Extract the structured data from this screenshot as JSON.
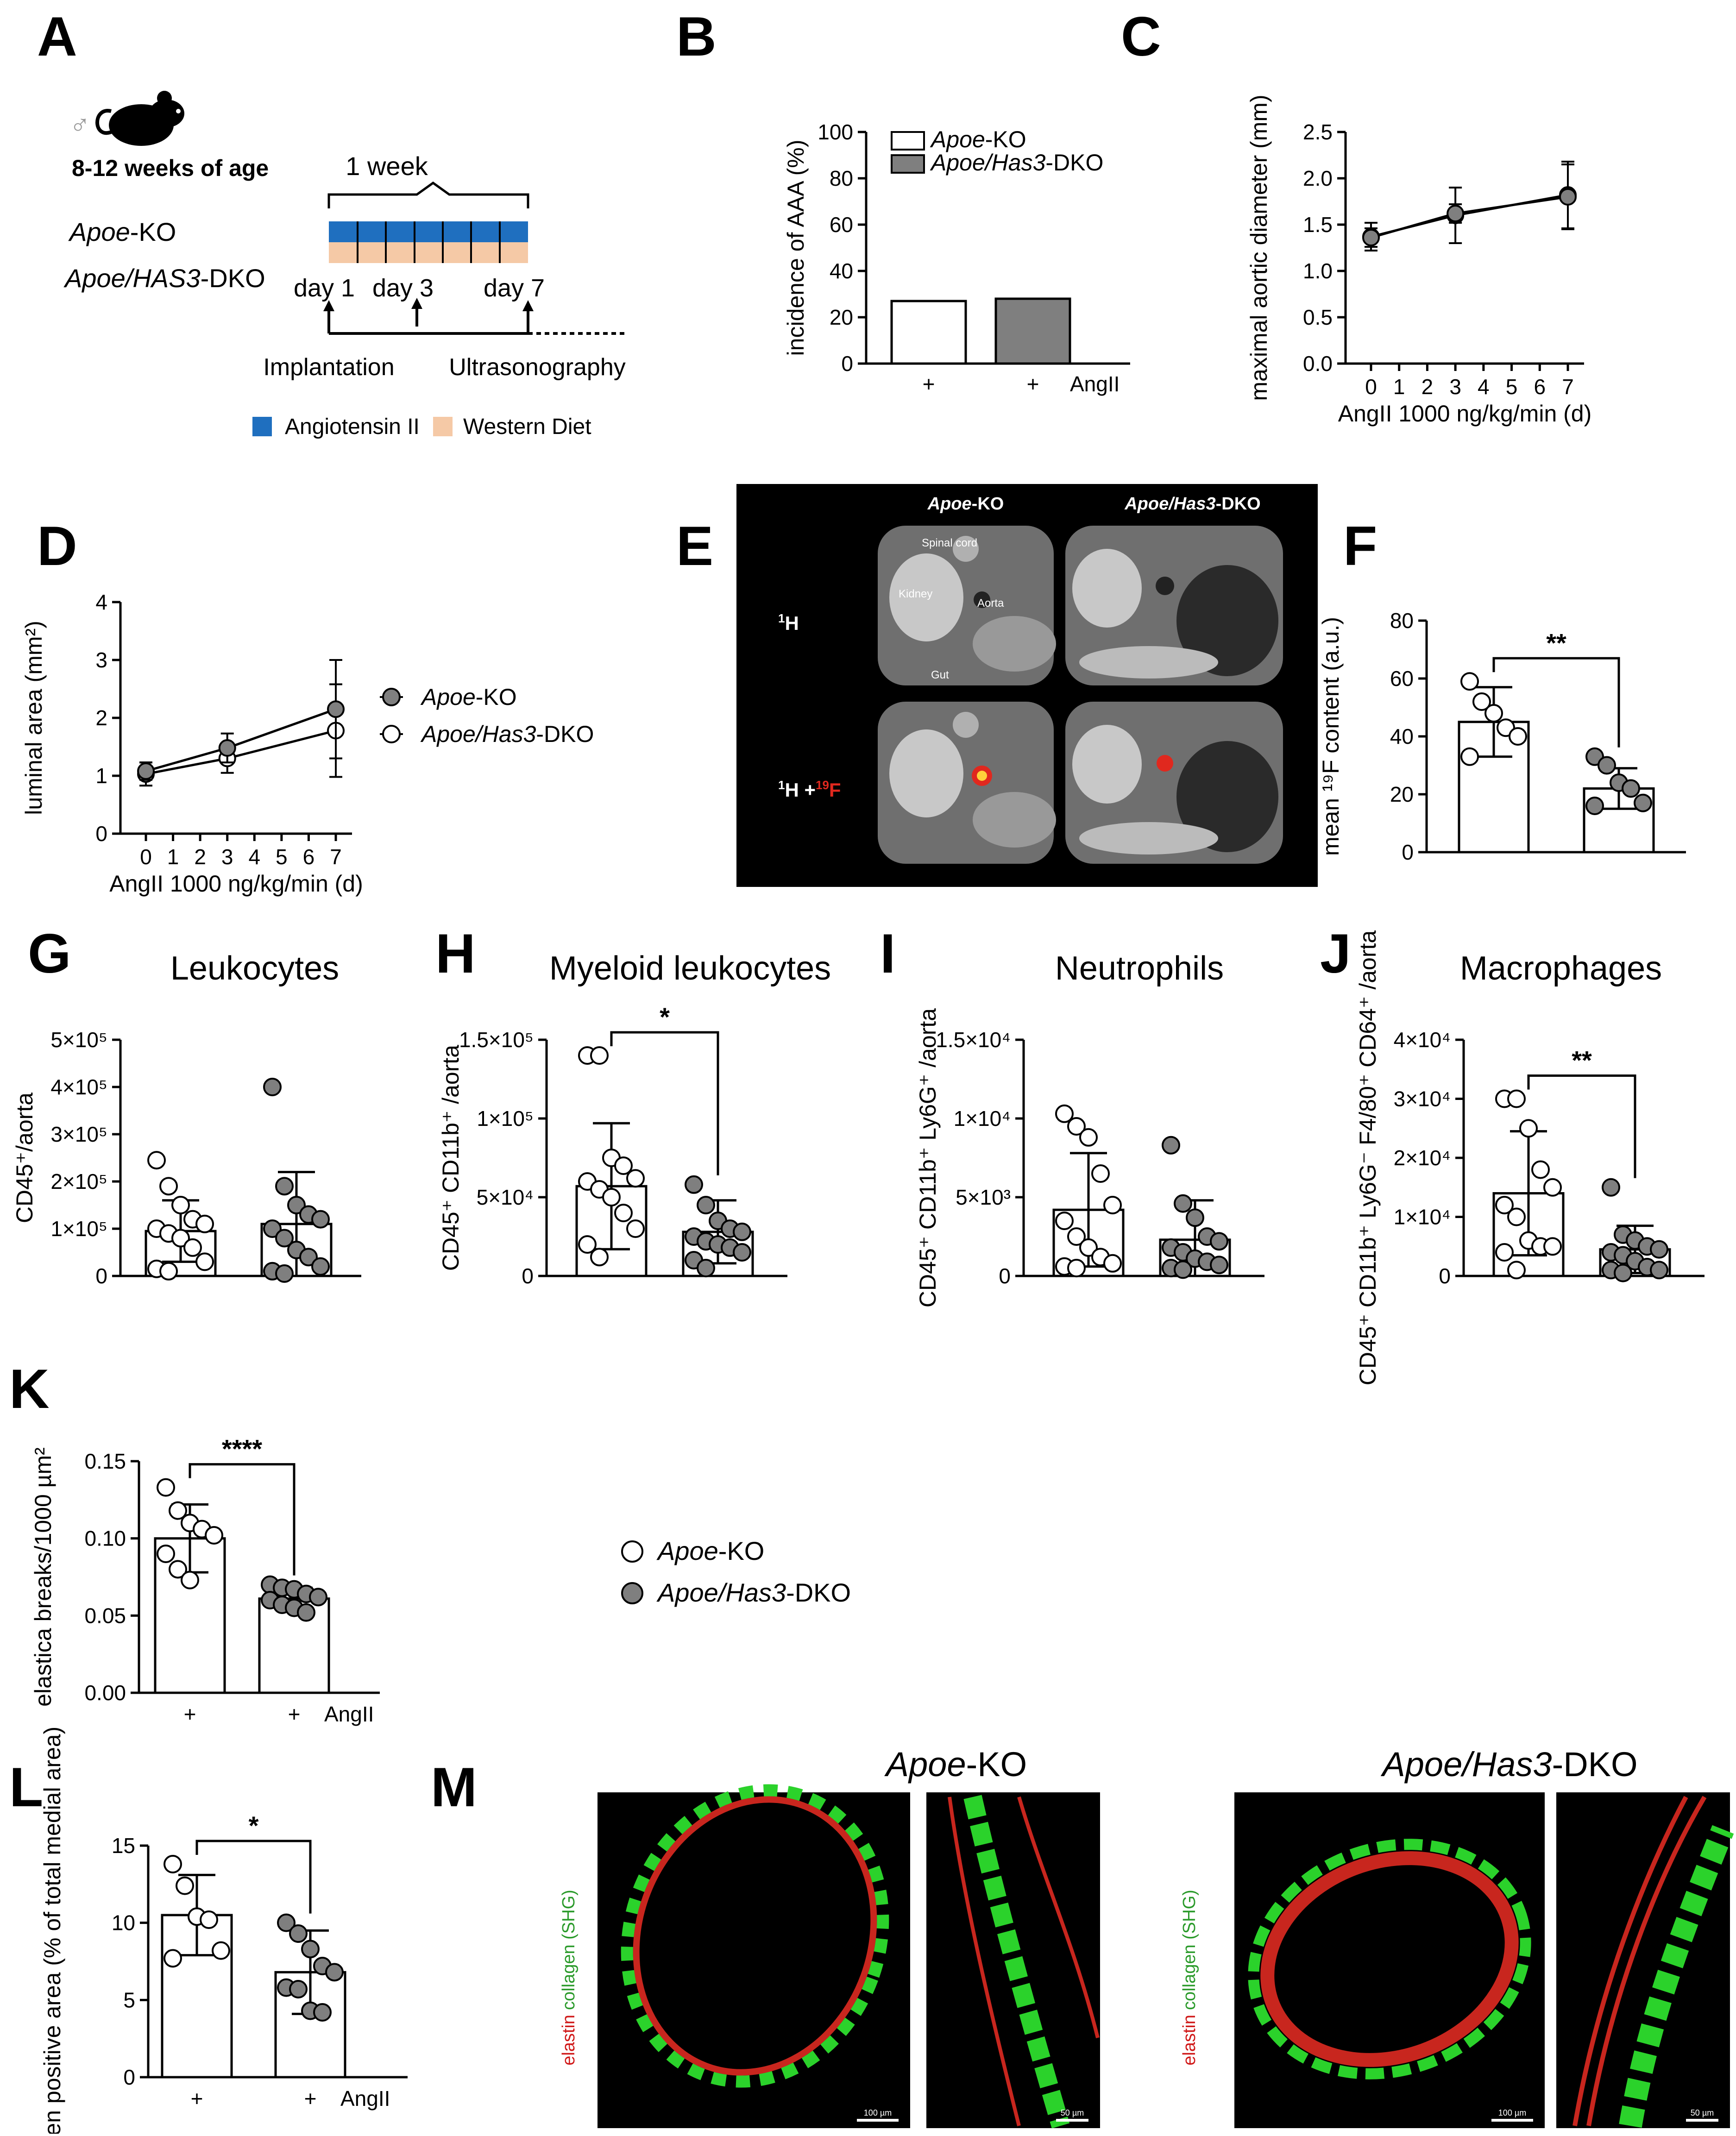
{
  "colors": {
    "ko_fill": "#ffffff",
    "dko_fill": "#7f7f7f",
    "angII": "#1f6fbf",
    "diet": "#f5c9a6",
    "stroke": "#000000",
    "mri_highlight": "#e0281e"
  },
  "labels": {
    "A": "A",
    "B": "B",
    "C": "C",
    "D": "D",
    "E": "E",
    "F": "F",
    "G": "G",
    "H": "H",
    "I": "I",
    "J": "J",
    "K": "K",
    "L": "L",
    "M": "M"
  },
  "schematic": {
    "sex_symbol": "♂",
    "age": "8-12 weeks of age",
    "week": "1 week",
    "group1_italic": "Apoe",
    "group1_suffix": "-KO",
    "group2_italic": "Apoe/HAS3",
    "group2_suffix": "-DKO",
    "day1": "day 1",
    "day3": "day 3",
    "day7": "day 7",
    "implantation": "Implantation",
    "ultrasonography": "Ultrasonography",
    "legend_angII": "Angiotensin II",
    "legend_diet": "Western Diet"
  },
  "legend": {
    "ko_italic": "Apoe",
    "ko_suffix": "-KO",
    "dko_italic": "Apoe/Has3",
    "dko_suffix": "-DKO"
  },
  "mri": {
    "col1_italic": "Apoe",
    "col1_suffix": "-KO",
    "col2_italic": "Apoe/Has3",
    "col2_suffix": "-DKO",
    "row1": "H",
    "row1_sup": "1",
    "row2a": "H +",
    "row2_sup1": "1",
    "row2_sup2": "19",
    "row2b": "F",
    "spinal": "Spinal cord",
    "kidney": "Kidney",
    "aorta": "Aorta",
    "gut": "Gut"
  },
  "micro": {
    "title1_italic": "Apoe",
    "title1_suffix": "-KO",
    "title2_italic": "Apoe/Has3",
    "title2_suffix": "-DKO",
    "ylab_elastin": "elastin",
    "ylab_collagen": "collagen (SHG)",
    "scale100": "100 µm",
    "scale50": "50 µm"
  },
  "chart_data": [
    {
      "panel": "B",
      "type": "bar",
      "categories": [
        "+",
        "+"
      ],
      "xsuffix": "AngII",
      "values": [
        27,
        28
      ],
      "ylabel": "incidence of AAA (%)",
      "ylim": [
        0,
        100
      ],
      "yticks": [
        "0",
        "20",
        "40",
        "60",
        "80",
        "100"
      ]
    },
    {
      "panel": "C",
      "type": "line",
      "x": [
        0,
        3,
        7
      ],
      "xticks": [
        "0",
        "1",
        "2",
        "3",
        "4",
        "5",
        "6",
        "7"
      ],
      "xlabel": "AngII 1000 ng/kg/min (d)",
      "ylabel": "maximal aortic diameter  (mm)",
      "ylim": [
        0,
        2.5
      ],
      "yticks": [
        "0.0",
        "0.5",
        "1.0",
        "1.5",
        "2.0",
        "2.5"
      ],
      "series": [
        {
          "group": "ko",
          "values": [
            1.37,
            1.6,
            1.82
          ],
          "sd": [
            0.15,
            0.3,
            0.36
          ]
        },
        {
          "group": "dko",
          "values": [
            1.36,
            1.62,
            1.8
          ],
          "sd": [
            0.1,
            0.1,
            0.35
          ]
        }
      ]
    },
    {
      "panel": "D",
      "type": "line",
      "x": [
        0,
        3,
        7
      ],
      "xticks": [
        "0",
        "1",
        "2",
        "3",
        "4",
        "5",
        "6",
        "7"
      ],
      "xlabel": "AngII 1000 ng/kg/min (d)",
      "ylabel": "luminal area (mm²)",
      "ylim": [
        0,
        4
      ],
      "yticks": [
        "0",
        "1",
        "2",
        "3",
        "4"
      ],
      "series": [
        {
          "group": "ko",
          "values": [
            1.03,
            1.3,
            1.78
          ],
          "sd": [
            0.2,
            0.25,
            0.8
          ]
        },
        {
          "group": "dko",
          "values": [
            1.08,
            1.48,
            2.15
          ],
          "sd": [
            0.15,
            0.25,
            0.85
          ]
        }
      ]
    },
    {
      "panel": "F",
      "type": "scatter",
      "ylabel": "mean ¹⁹F content (a.u.)",
      "ylim": [
        0,
        80
      ],
      "yticks": [
        "0",
        "20",
        "40",
        "60",
        "80"
      ],
      "significance": "**",
      "groups": [
        {
          "group": "ko",
          "mean": 45,
          "sd": 12,
          "points": [
            59,
            52,
            48,
            43,
            40,
            33
          ]
        },
        {
          "group": "dko",
          "mean": 22,
          "sd": 7,
          "points": [
            33,
            30,
            24,
            22,
            17,
            16
          ]
        }
      ]
    },
    {
      "panel": "G",
      "type": "scatter",
      "title": "Leukocytes",
      "ylabel": "CD45⁺/aorta",
      "ylim": [
        0,
        500000
      ],
      "yticks": [
        "0",
        "1×10⁵",
        "2×10⁵",
        "3×10⁵",
        "4×10⁵",
        "5×10⁵"
      ],
      "groups": [
        {
          "group": "ko",
          "mean": 95000,
          "sd": 65000,
          "points": [
            245000,
            190000,
            150000,
            120000,
            110000,
            100000,
            90000,
            80000,
            60000,
            30000,
            15000,
            10000
          ]
        },
        {
          "group": "dko",
          "mean": 110000,
          "sd": 110000,
          "points": [
            400000,
            190000,
            150000,
            130000,
            120000,
            100000,
            80000,
            55000,
            40000,
            20000,
            10000,
            5000
          ]
        }
      ]
    },
    {
      "panel": "H",
      "type": "scatter",
      "title": "Myeloid leukocytes",
      "ylabel": "CD45⁺ CD11b⁺ /aorta",
      "ylim": [
        0,
        150000
      ],
      "yticks": [
        "0",
        "5×10⁴",
        "1×10⁵",
        "1.5×10⁵"
      ],
      "significance": "*",
      "groups": [
        {
          "group": "ko",
          "mean": 57000,
          "sd": 40000,
          "points": [
            140000,
            140000,
            75000,
            70000,
            62000,
            60000,
            55000,
            50000,
            40000,
            30000,
            20000,
            12000
          ]
        },
        {
          "group": "dko",
          "mean": 28000,
          "sd": 20000,
          "points": [
            58000,
            45000,
            35000,
            30000,
            28000,
            25000,
            22000,
            20000,
            18000,
            15000,
            10000,
            5000
          ]
        }
      ]
    },
    {
      "panel": "I",
      "type": "scatter",
      "title": "Neutrophils",
      "ylabel": "CD45⁺ CD11b⁺ Ly6G⁺ /aorta",
      "ylim": [
        0,
        15000
      ],
      "yticks": [
        "0",
        "5×10³",
        "1×10⁴",
        "1.5×10⁴"
      ],
      "groups": [
        {
          "group": "ko",
          "mean": 4200,
          "sd": 3600,
          "points": [
            10300,
            9500,
            8800,
            6500,
            4500,
            3500,
            2500,
            1800,
            1200,
            800,
            600,
            500
          ]
        },
        {
          "group": "dko",
          "mean": 2300,
          "sd": 2500,
          "points": [
            8300,
            4600,
            3700,
            2500,
            2200,
            1800,
            1500,
            1100,
            900,
            700,
            500,
            400
          ]
        }
      ]
    },
    {
      "panel": "J",
      "type": "scatter",
      "title": "Macrophages",
      "ylabel": "CD45⁺ CD11b⁺ Ly6G⁻ F4/80⁺ CD64⁺ /aorta",
      "ylim": [
        0,
        40000
      ],
      "yticks": [
        "0",
        "1×10⁴",
        "2×10⁴",
        "3×10⁴",
        "4×10⁴"
      ],
      "significance": "**",
      "groups": [
        {
          "group": "ko",
          "mean": 14000,
          "sd": 10500,
          "points": [
            30000,
            30000,
            25000,
            18000,
            15000,
            12000,
            10000,
            6000,
            5000,
            5000,
            4000,
            1000
          ]
        },
        {
          "group": "dko",
          "mean": 4500,
          "sd": 4000,
          "points": [
            15000,
            7000,
            6000,
            5000,
            4500,
            4000,
            3500,
            2500,
            1500,
            1000,
            1000,
            500
          ]
        }
      ]
    },
    {
      "panel": "K",
      "type": "scatter",
      "ylabel": "elastica breaks/1000 µm²",
      "ylim": [
        0,
        0.15
      ],
      "yticks": [
        "0.00",
        "0.05",
        "0.10",
        "0.15"
      ],
      "xticks": [
        "+",
        "+"
      ],
      "xsuffix": "AngII",
      "significance": "****",
      "groups": [
        {
          "group": "ko",
          "mean": 0.1,
          "sd": 0.022,
          "points": [
            0.133,
            0.118,
            0.11,
            0.106,
            0.102,
            0.09,
            0.08,
            0.073
          ]
        },
        {
          "group": "dko",
          "mean": 0.061,
          "sd": 0.007,
          "points": [
            0.07,
            0.068,
            0.067,
            0.064,
            0.062,
            0.06,
            0.057,
            0.055,
            0.052
          ]
        }
      ]
    },
    {
      "panel": "L",
      "type": "scatter",
      "ylabel": "collagen positive area (% of total medial area)",
      "ylim": [
        0,
        15
      ],
      "yticks": [
        "0",
        "5",
        "10",
        "15"
      ],
      "xticks": [
        "+",
        "+"
      ],
      "xsuffix": "AngII",
      "significance": "*",
      "groups": [
        {
          "group": "ko",
          "mean": 10.5,
          "sd": 2.6,
          "points": [
            13.8,
            12.4,
            10.4,
            10.2,
            8.2,
            7.7
          ]
        },
        {
          "group": "dko",
          "mean": 6.8,
          "sd": 2.7,
          "points": [
            10,
            9.3,
            8.3,
            7.2,
            6.8,
            5.8,
            5.7,
            4.3,
            4.2
          ]
        }
      ]
    }
  ]
}
